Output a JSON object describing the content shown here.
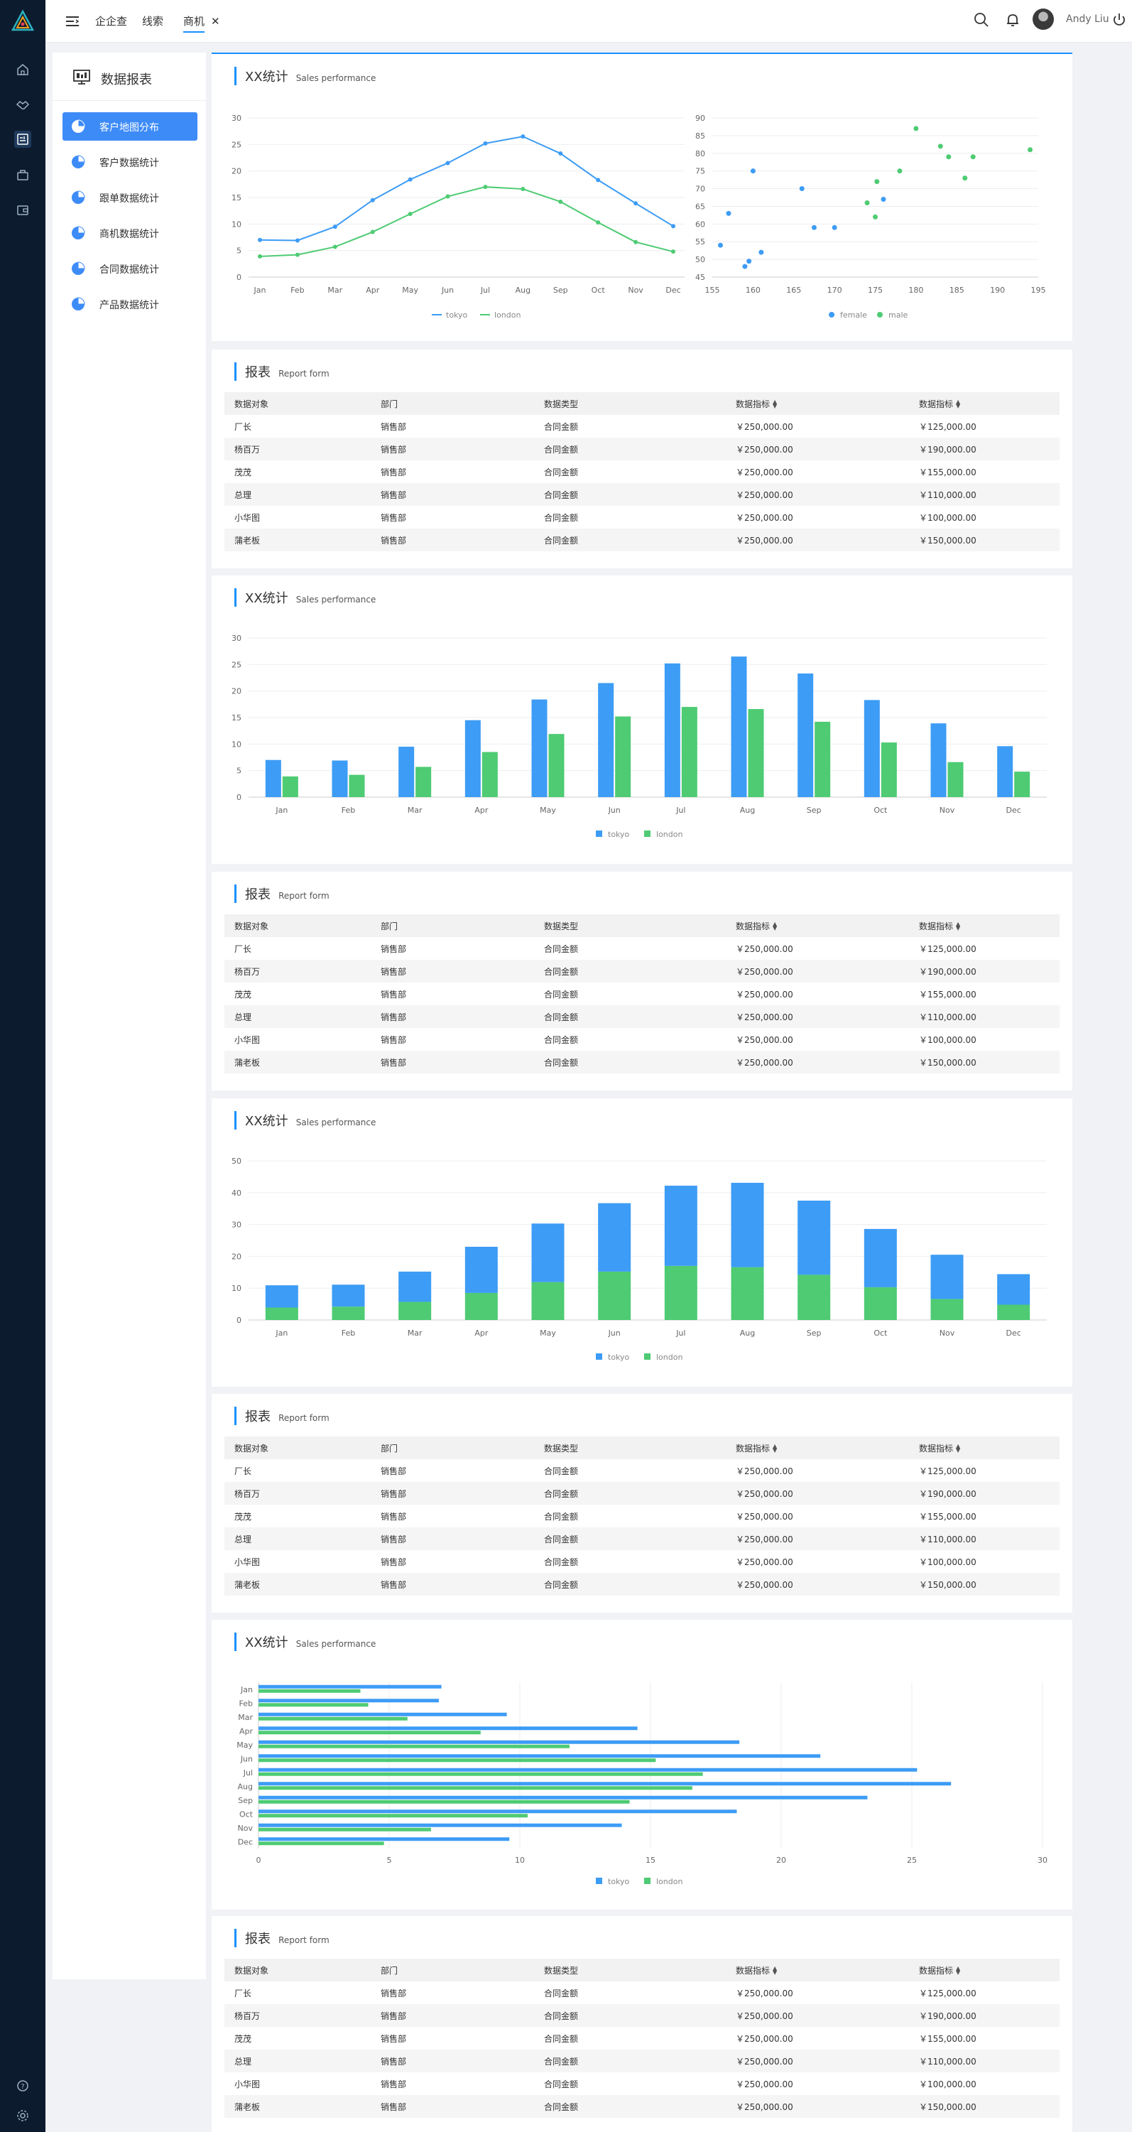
{
  "header": {
    "tabs": [
      {
        "label": "企企查",
        "active": false
      },
      {
        "label": "线索",
        "active": false
      },
      {
        "label": "商机",
        "active": true
      }
    ],
    "close_symbol": "✕",
    "user_name": "Andy Liu",
    "icons": [
      "menu-toggle-icon",
      "search-icon",
      "bell-icon",
      "avatar",
      "power-icon"
    ]
  },
  "rail": {
    "icons": [
      "logo-icon",
      "home-icon",
      "handshake-icon",
      "report-icon",
      "briefcase-icon",
      "wallet-icon",
      "help-icon",
      "settings-icon"
    ]
  },
  "sidebar": {
    "title": "数据报表",
    "items": [
      {
        "label": "客户地图分布",
        "active": true
      },
      {
        "label": "客户数据统计",
        "active": false
      },
      {
        "label": "跟单数据统计",
        "active": false
      },
      {
        "label": "商机数据统计",
        "active": false
      },
      {
        "label": "合同数据统计",
        "active": false
      },
      {
        "label": "产品数据统计",
        "active": false
      }
    ]
  },
  "colors": {
    "accent": "#1890ff",
    "tokyo": "#3d9cf5",
    "london": "#4ecb73",
    "rail_bg": "#0d1b2e"
  },
  "chart_cards": [
    {
      "title": "XX统计",
      "subtitle": "Sales performance"
    },
    {
      "title": "XX统计",
      "subtitle": "Sales performance"
    },
    {
      "title": "XX统计",
      "subtitle": "Sales performance"
    },
    {
      "title": "XX统计",
      "subtitle": "Sales performance"
    }
  ],
  "report": {
    "title": "报表",
    "subtitle": "Report form",
    "columns": [
      "数据对象",
      "部门",
      "数据类型",
      "数据指标",
      "数据指标"
    ],
    "sortable": [
      false,
      false,
      false,
      true,
      true
    ],
    "rows": [
      [
        "厂长",
        "销售部",
        "合同金额",
        "￥250,000.00",
        "￥125,000.00"
      ],
      [
        "杨百万",
        "销售部",
        "合同金额",
        "￥250,000.00",
        "￥190,000.00"
      ],
      [
        "茂茂",
        "销售部",
        "合同金额",
        "￥250,000.00",
        "￥155,000.00"
      ],
      [
        "总理",
        "销售部",
        "合同金额",
        "￥250,000.00",
        "￥110,000.00"
      ],
      [
        "小华图",
        "销售部",
        "合同金额",
        "￥250,000.00",
        "￥100,000.00"
      ],
      [
        "蒲老板",
        "销售部",
        "合同金额",
        "￥250,000.00",
        "￥150,000.00"
      ]
    ]
  },
  "chart_data": [
    {
      "type": "line",
      "categories": [
        "Jan",
        "Feb",
        "Mar",
        "Apr",
        "May",
        "Jun",
        "Jul",
        "Aug",
        "Sep",
        "Oct",
        "Nov",
        "Dec"
      ],
      "series": [
        {
          "name": "tokyo",
          "values": [
            7.0,
            6.9,
            9.5,
            14.5,
            18.4,
            21.5,
            25.2,
            26.5,
            23.3,
            18.3,
            13.9,
            9.6
          ]
        },
        {
          "name": "london",
          "values": [
            3.9,
            4.2,
            5.7,
            8.5,
            11.9,
            15.2,
            17.0,
            16.6,
            14.2,
            10.3,
            6.6,
            4.8
          ]
        }
      ],
      "ylim": [
        0,
        30
      ],
      "yticks": [
        0,
        5,
        10,
        15,
        20,
        25,
        30
      ],
      "grid": true,
      "legend": "bottom"
    },
    {
      "type": "scatter",
      "series": [
        {
          "name": "female",
          "points": [
            [
              156,
              54
            ],
            [
              157,
              63
            ],
            [
              159,
              48
            ],
            [
              159.5,
              49.5
            ],
            [
              160,
              75
            ],
            [
              161,
              52
            ],
            [
              166,
              70
            ],
            [
              167.5,
              59
            ],
            [
              170,
              59
            ],
            [
              176,
              67
            ]
          ]
        },
        {
          "name": "male",
          "points": [
            [
              174,
              66
            ],
            [
              175,
              62
            ],
            [
              175.2,
              72
            ],
            [
              178,
              75
            ],
            [
              180,
              87
            ],
            [
              183,
              82
            ],
            [
              184,
              79
            ],
            [
              186,
              73
            ],
            [
              187,
              79
            ],
            [
              194,
              81
            ]
          ]
        }
      ],
      "xlim": [
        155,
        195
      ],
      "xticks": [
        155,
        160,
        165,
        170,
        175,
        180,
        185,
        190,
        195
      ],
      "ylim": [
        45,
        90
      ],
      "yticks": [
        45,
        50,
        55,
        60,
        65,
        70,
        75,
        80,
        85,
        90
      ],
      "grid": true,
      "legend": "bottom"
    },
    {
      "type": "bar",
      "categories": [
        "Jan",
        "Feb",
        "Mar",
        "Apr",
        "May",
        "Jun",
        "Jul",
        "Aug",
        "Sep",
        "Oct",
        "Nov",
        "Dec"
      ],
      "series": [
        {
          "name": "tokyo",
          "values": [
            7.0,
            6.9,
            9.5,
            14.5,
            18.4,
            21.5,
            25.2,
            26.5,
            23.3,
            18.3,
            13.9,
            9.6
          ]
        },
        {
          "name": "london",
          "values": [
            3.9,
            4.2,
            5.7,
            8.5,
            11.9,
            15.2,
            17.0,
            16.6,
            14.2,
            10.3,
            6.6,
            4.8
          ]
        }
      ],
      "ylim": [
        0,
        30
      ],
      "yticks": [
        0,
        5,
        10,
        15,
        20,
        25,
        30
      ],
      "grid": true,
      "legend": "bottom"
    },
    {
      "type": "bar",
      "stacked": true,
      "categories": [
        "Jan",
        "Feb",
        "Mar",
        "Apr",
        "May",
        "Jun",
        "Jul",
        "Aug",
        "Sep",
        "Oct",
        "Nov",
        "Dec"
      ],
      "series": [
        {
          "name": "tokyo",
          "values": [
            7.0,
            6.9,
            9.5,
            14.5,
            18.4,
            21.5,
            25.2,
            26.5,
            23.3,
            18.3,
            13.9,
            9.6
          ]
        },
        {
          "name": "london",
          "values": [
            3.9,
            4.2,
            5.7,
            8.5,
            11.9,
            15.2,
            17.0,
            16.6,
            14.2,
            10.3,
            6.6,
            4.8
          ]
        }
      ],
      "ylim": [
        0,
        50
      ],
      "yticks": [
        0,
        10,
        20,
        30,
        40,
        50
      ],
      "grid": true,
      "legend": "bottom"
    },
    {
      "type": "bar",
      "orientation": "horizontal",
      "categories": [
        "Jan",
        "Feb",
        "Mar",
        "Apr",
        "May",
        "Jun",
        "Jul",
        "Aug",
        "Sep",
        "Oct",
        "Nov",
        "Dec"
      ],
      "series": [
        {
          "name": "tokyo",
          "values": [
            7.0,
            6.9,
            9.5,
            14.5,
            18.4,
            21.5,
            25.2,
            26.5,
            23.3,
            18.3,
            13.9,
            9.6
          ]
        },
        {
          "name": "london",
          "values": [
            3.9,
            4.2,
            5.7,
            8.5,
            11.9,
            15.2,
            17.0,
            16.6,
            14.2,
            10.3,
            6.6,
            4.8
          ]
        }
      ],
      "xlim": [
        0,
        30
      ],
      "xticks": [
        0,
        5,
        10,
        15,
        20,
        25,
        30
      ],
      "grid": true,
      "legend": "bottom"
    }
  ]
}
